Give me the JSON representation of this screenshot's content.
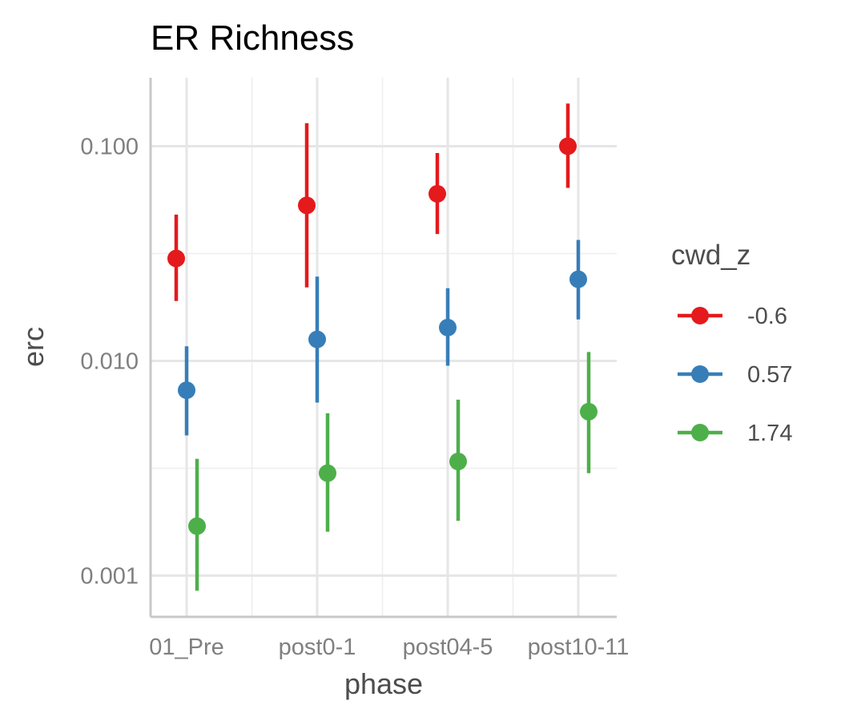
{
  "chart_data": {
    "type": "scatter",
    "title": "ER Richness",
    "xlabel": "phase",
    "ylabel": "erc",
    "y_scale": "log10",
    "ylim": [
      0.0007,
      0.2
    ],
    "categories": [
      "01_Pre",
      "post0-1",
      "post04-5",
      "post10-11"
    ],
    "y_ticks": [
      0.001,
      0.01,
      0.1
    ],
    "y_tick_labels": [
      "0.001",
      "0.010",
      "0.100"
    ],
    "legend": {
      "title": "cwd_z",
      "placement": "right"
    },
    "grid": true,
    "series": [
      {
        "name": "-0.6",
        "color": "#e41a1c",
        "values": [
          0.03,
          0.053,
          0.06,
          0.1
        ],
        "lower": [
          0.019,
          0.022,
          0.039,
          0.064
        ],
        "upper": [
          0.048,
          0.128,
          0.093,
          0.158
        ]
      },
      {
        "name": "0.57",
        "color": "#377eb8",
        "values": [
          0.0073,
          0.0126,
          0.0143,
          0.024
        ],
        "lower": [
          0.0045,
          0.0064,
          0.0095,
          0.0156
        ],
        "upper": [
          0.0117,
          0.0247,
          0.0218,
          0.0366
        ]
      },
      {
        "name": "1.74",
        "color": "#4daf4a",
        "values": [
          0.0017,
          0.003,
          0.0034,
          0.0058
        ],
        "lower": [
          0.00085,
          0.0016,
          0.0018,
          0.003
        ],
        "upper": [
          0.0035,
          0.0057,
          0.0066,
          0.011
        ]
      }
    ]
  }
}
